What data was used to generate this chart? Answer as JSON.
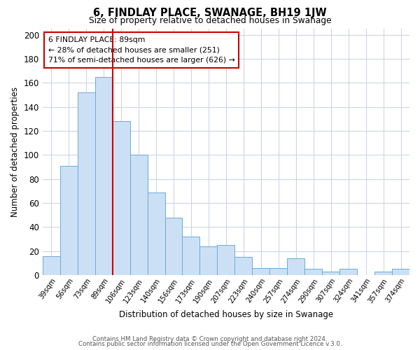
{
  "title": "6, FINDLAY PLACE, SWANAGE, BH19 1JW",
  "subtitle": "Size of property relative to detached houses in Swanage",
  "xlabel": "Distribution of detached houses by size in Swanage",
  "ylabel": "Number of detached properties",
  "categories": [
    "39sqm",
    "56sqm",
    "73sqm",
    "89sqm",
    "106sqm",
    "123sqm",
    "140sqm",
    "156sqm",
    "173sqm",
    "190sqm",
    "207sqm",
    "223sqm",
    "240sqm",
    "257sqm",
    "274sqm",
    "290sqm",
    "307sqm",
    "324sqm",
    "341sqm",
    "357sqm",
    "374sqm"
  ],
  "values": [
    16,
    91,
    152,
    165,
    128,
    100,
    69,
    48,
    32,
    24,
    25,
    15,
    6,
    6,
    14,
    5,
    3,
    5,
    0,
    3,
    5
  ],
  "bar_color": "#cce0f5",
  "bar_edge_color": "#6aaad4",
  "vline_x": 3.5,
  "vline_color": "#cc0000",
  "annotation_title": "6 FINDLAY PLACE: 89sqm",
  "annotation_line1": "← 28% of detached houses are smaller (251)",
  "annotation_line2": "71% of semi-detached houses are larger (626) →",
  "annotation_box_edge": "#cc0000",
  "ylim": [
    0,
    205
  ],
  "yticks": [
    0,
    20,
    40,
    60,
    80,
    100,
    120,
    140,
    160,
    180,
    200
  ],
  "footer_line1": "Contains HM Land Registry data © Crown copyright and database right 2024.",
  "footer_line2": "Contains public sector information licensed under the Open Government Licence v.3.0.",
  "bg_color": "#ffffff",
  "grid_color": "#ccd5e5"
}
